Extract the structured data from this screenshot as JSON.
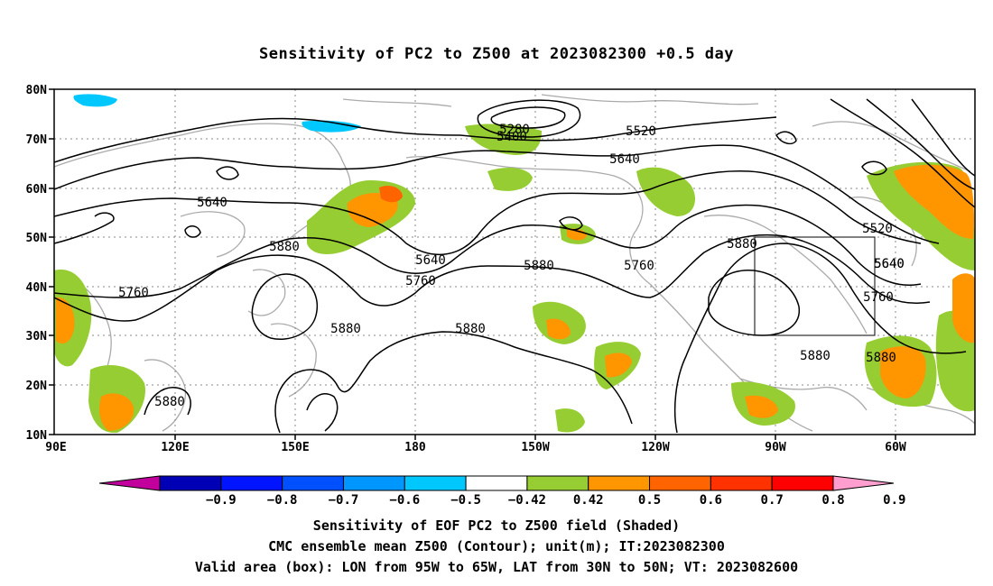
{
  "title": "Sensitivity of PC2 to Z500 at 2023082300 +0.5 day",
  "map": {
    "lat_ticks": [
      "80N",
      "70N",
      "60N",
      "50N",
      "40N",
      "30N",
      "20N",
      "10N"
    ],
    "lon_ticks": [
      "90E",
      "120E",
      "150E",
      "180",
      "150W",
      "120W",
      "90W",
      "60W"
    ],
    "contour_labels": [
      "5280",
      "5400",
      "5520",
      "5640",
      "5640",
      "5640",
      "5640",
      "5520",
      "5640",
      "5760",
      "5760",
      "5760",
      "5760",
      "5880",
      "5880",
      "5880",
      "5880",
      "5880",
      "5880",
      "5880",
      "5880"
    ],
    "valid_box": {
      "lon_min": -95,
      "lon_max": -65,
      "lat_min": 30,
      "lat_max": 50
    }
  },
  "colorbar": {
    "labels": [
      "-0.9",
      "-0.8",
      "-0.7",
      "-0.6",
      "-0.5",
      "-0.42",
      "0.42",
      "0.5",
      "0.6",
      "0.7",
      "0.8",
      "0.9"
    ],
    "colors": [
      "#c2009b",
      "#0000b4",
      "#0014ff",
      "#0050ff",
      "#0096ff",
      "#00c8ff",
      "#ffffff",
      "#96cd32",
      "#ff9600",
      "#ff6400",
      "#ff3200",
      "#ff0000",
      "#ff9ecf"
    ]
  },
  "footer": {
    "line1": "Sensitivity of EOF PC2 to Z500 field (Shaded)",
    "line2": "CMC ensemble mean Z500 (Contour); unit(m); IT:2023082300",
    "line3": "Valid area (box): LON from 95W to 65W, LAT from 30N to 50N; VT: 2023082600"
  }
}
